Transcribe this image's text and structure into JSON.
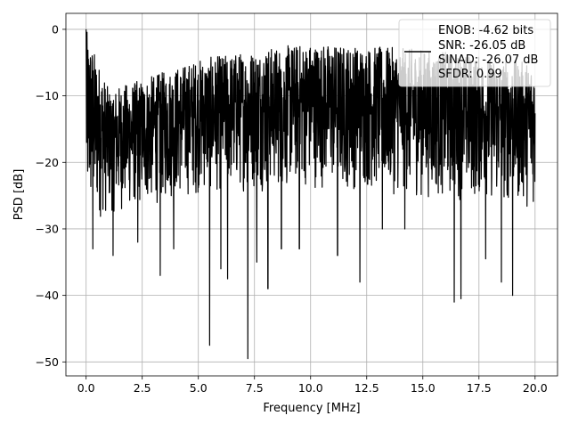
{
  "chart_data": {
    "type": "line",
    "title": "",
    "xlabel": "Frequency [MHz]",
    "ylabel": "PSD [dB]",
    "xlim": [
      -0.9,
      21.0
    ],
    "ylim": [
      -52.1,
      2.4
    ],
    "x_ticks": [
      0.0,
      2.5,
      5.0,
      7.5,
      10.0,
      12.5,
      15.0,
      17.5,
      20.0
    ],
    "x_tick_labels": [
      "0.0",
      "2.5",
      "5.0",
      "7.5",
      "10.0",
      "12.5",
      "15.0",
      "17.5",
      "20.0"
    ],
    "y_ticks": [
      0,
      -10,
      -20,
      -30,
      -40,
      -50
    ],
    "y_tick_labels": [
      "0",
      "−10",
      "−20",
      "−30",
      "−40",
      "−50"
    ],
    "grid": true,
    "legend": {
      "position": "top-right",
      "entries": [
        "ENOB: -4.62 bits",
        "SNR: -26.05 dB",
        "SINAD: -26.07 dB",
        "SFDR: 0.99"
      ]
    },
    "series": [
      {
        "color": "#000000",
        "x_range": [
          0.0,
          20.0
        ],
        "points_approx": 2000,
        "envelope_note_free": true,
        "envelope_x": [
          0.0,
          1.0,
          2.5,
          5.0,
          7.5,
          10.0,
          12.5,
          15.0,
          17.5,
          20.0
        ],
        "envelope_upper": [
          0.0,
          -9.0,
          -7.5,
          -4.5,
          -3.0,
          -2.0,
          -2.5,
          -3.0,
          -4.0,
          -5.0
        ],
        "envelope_lower": [
          -30.0,
          -28.0,
          -27.0,
          -25.0,
          -24.5,
          -24.0,
          -24.5,
          -25.5,
          -26.0,
          -27.0
        ],
        "deep_minima": [
          {
            "x": 0.3,
            "y": -33.0
          },
          {
            "x": 1.2,
            "y": -34.0
          },
          {
            "x": 2.3,
            "y": -32.0
          },
          {
            "x": 3.3,
            "y": -37.0
          },
          {
            "x": 3.9,
            "y": -33.0
          },
          {
            "x": 5.5,
            "y": -47.5
          },
          {
            "x": 6.0,
            "y": -36.0
          },
          {
            "x": 6.3,
            "y": -37.5
          },
          {
            "x": 7.2,
            "y": -49.5
          },
          {
            "x": 7.6,
            "y": -35.0
          },
          {
            "x": 8.1,
            "y": -39.0
          },
          {
            "x": 8.7,
            "y": -33.0
          },
          {
            "x": 9.5,
            "y": -33.0
          },
          {
            "x": 11.2,
            "y": -34.0
          },
          {
            "x": 12.2,
            "y": -38.0
          },
          {
            "x": 13.2,
            "y": -30.0
          },
          {
            "x": 14.2,
            "y": -30.0
          },
          {
            "x": 16.4,
            "y": -41.0
          },
          {
            "x": 16.7,
            "y": -40.5
          },
          {
            "x": 17.8,
            "y": -34.5
          },
          {
            "x": 18.5,
            "y": -38.0
          },
          {
            "x": 19.0,
            "y": -40.0
          }
        ]
      }
    ]
  }
}
